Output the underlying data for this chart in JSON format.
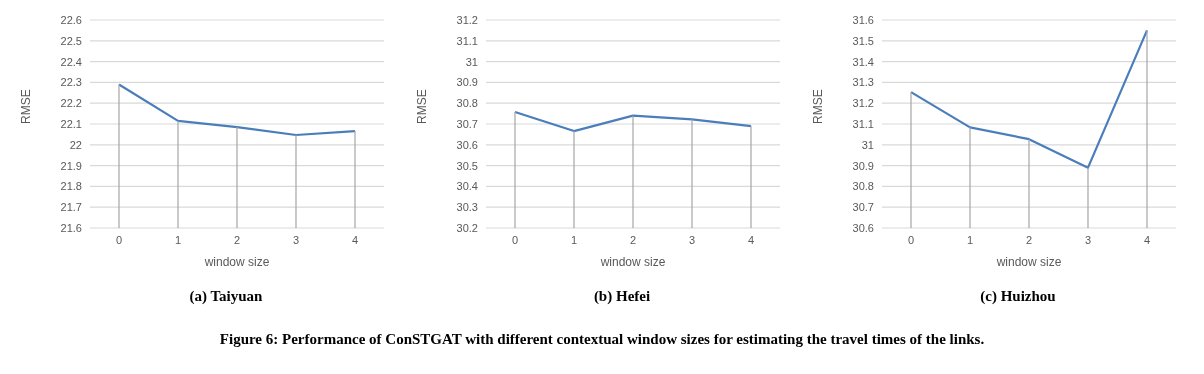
{
  "chart_data": [
    {
      "type": "line",
      "title": "(a) Taiyuan",
      "xlabel": "window size",
      "ylabel": "RMSE",
      "categories": [
        "0",
        "1",
        "2",
        "3",
        "4"
      ],
      "series": [
        {
          "color": "#4a7ebb",
          "values": [
            22.29,
            22.115,
            22.085,
            22.047,
            22.066
          ],
          "errors": [
            [
              21.6,
              22.29
            ],
            [
              21.6,
              22.115
            ],
            [
              21.6,
              22.085
            ],
            [
              21.6,
              22.047
            ],
            [
              21.6,
              22.066
            ]
          ]
        }
      ],
      "ylim": [
        21.6,
        22.6
      ],
      "yticks": [
        21.6,
        21.7,
        21.8,
        21.9,
        22,
        22.1,
        22.2,
        22.3,
        22.4,
        22.5,
        22.6
      ],
      "grid": "y"
    },
    {
      "type": "line",
      "title": "(b) Hefei",
      "xlabel": "window size",
      "ylabel": "RMSE",
      "categories": [
        "0",
        "1",
        "2",
        "3",
        "4"
      ],
      "series": [
        {
          "color": "#4a7ebb",
          "values": [
            30.758,
            30.666,
            30.74,
            30.722,
            30.69
          ],
          "errors": [
            [
              30.2,
              30.758
            ],
            [
              30.2,
              30.666
            ],
            [
              30.2,
              30.74
            ],
            [
              30.2,
              30.722
            ],
            [
              30.2,
              30.69
            ]
          ]
        }
      ],
      "ylim": [
        30.2,
        31.2
      ],
      "yticks": [
        30.2,
        30.3,
        30.4,
        30.5,
        30.6,
        30.7,
        30.8,
        30.9,
        31,
        31.1,
        31.2
      ],
      "grid": "y"
    },
    {
      "type": "line",
      "title": "(c) Huizhou",
      "xlabel": "window size",
      "ylabel": "RMSE",
      "categories": [
        "0",
        "1",
        "2",
        "3",
        "4"
      ],
      "series": [
        {
          "color": "#4a7ebb",
          "values": [
            31.253,
            31.084,
            31.027,
            30.89,
            31.55
          ],
          "errors": [
            [
              30.6,
              31.253
            ],
            [
              30.6,
              31.084
            ],
            [
              30.6,
              31.027
            ],
            [
              30.6,
              30.89
            ],
            [
              30.6,
              31.55
            ]
          ]
        }
      ],
      "ylim": [
        30.6,
        31.6
      ],
      "yticks": [
        30.6,
        30.7,
        30.8,
        30.9,
        31,
        31.1,
        31.2,
        31.3,
        31.4,
        31.5,
        31.6
      ],
      "grid": "y",
      "annotations": [
        "Figure 6: Performance of ConSTGAT with different contextual window sizes for estimating the travel times of the links."
      ]
    }
  ]
}
